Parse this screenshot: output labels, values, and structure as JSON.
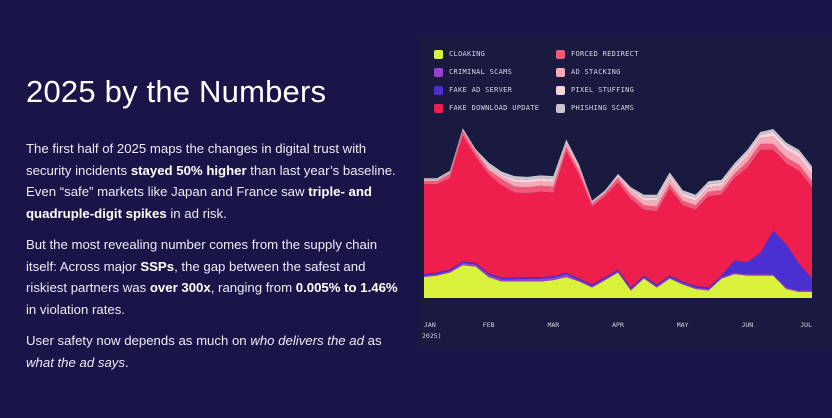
{
  "hero": {
    "title": "2025 by the Numbers",
    "p1": {
      "a": "The first half of 2025 maps the changes in digital trust with security incidents ",
      "b": "stayed 50% higher",
      "c": " than last year’s baseline. Even “safe” markets like Japan and France saw ",
      "d": "triple- and quadruple-digit spikes",
      "e": " in ad risk."
    },
    "p2": {
      "a": "But the most revealing number comes from the supply chain itself: Across major ",
      "b": "SSPs",
      "c": ", the gap between the safest and riskiest partners was ",
      "d": "over 300x",
      "e": ", ranging from ",
      "f": "0.005% to 1.46%",
      "g": " in violation rates."
    },
    "p3": {
      "a": "User safety now depends as much on ",
      "b": "who delivers the ad",
      "c": " as ",
      "d": "what the ad says",
      "e": "."
    }
  },
  "legend": [
    {
      "label": "CLOAKING",
      "color": "#d9f23b"
    },
    {
      "label": "FORCED REDIRECT",
      "color": "#f0597a"
    },
    {
      "label": "CRIMINAL SCAMS",
      "color": "#9b3fd6"
    },
    {
      "label": "AD STACKING",
      "color": "#f7a9b8"
    },
    {
      "label": "FAKE AD SERVER",
      "color": "#4a2fd1"
    },
    {
      "label": "PIXEL STUFFING",
      "color": "#fbd3dc"
    },
    {
      "label": "FAKE DOWNLOAD UPDATE",
      "color": "#ee1f4d"
    },
    {
      "label": "PHISHING SCAMS",
      "color": "#c8c5cf"
    }
  ],
  "chart_data": {
    "type": "area",
    "stacked": true,
    "categories": [
      "JAN",
      "FEB",
      "MAR",
      "APR",
      "MAY",
      "JUN",
      "JUL"
    ],
    "x_footnote": "2025)",
    "x": [
      0,
      1,
      2,
      3,
      4,
      5,
      6,
      7,
      8,
      9,
      10,
      11,
      12,
      13,
      14,
      15,
      16,
      17,
      18,
      19,
      20,
      21,
      22,
      23,
      24,
      25,
      26,
      27,
      28,
      29,
      30
    ],
    "series": [
      {
        "name": "CLOAKING",
        "color": "#d9f23b",
        "values": [
          14,
          15,
          17,
          22,
          21,
          14,
          11,
          11,
          11,
          11,
          12,
          14,
          11,
          7,
          12,
          17,
          5,
          13,
          7,
          13,
          9,
          6,
          5,
          13,
          16,
          15,
          15,
          15,
          6,
          4,
          4
        ]
      },
      {
        "name": "CRIMINAL SCAMS",
        "color": "#9b3fd6",
        "values": [
          1,
          1,
          1,
          1.5,
          1.5,
          1.5,
          1.5,
          1.5,
          2,
          2,
          1.5,
          2,
          1,
          1,
          1,
          1,
          1,
          1,
          1,
          1,
          1,
          1,
          1,
          1,
          1,
          1,
          1,
          1,
          1,
          1,
          1
        ]
      },
      {
        "name": "FAKE AD SERVER",
        "color": "#4a2fd1",
        "values": [
          1,
          1,
          1,
          1,
          1,
          1,
          1,
          1,
          1,
          1,
          1,
          1,
          1,
          1,
          1,
          1,
          1,
          1,
          1,
          1,
          1,
          1,
          1,
          1,
          8,
          8,
          14,
          29,
          29,
          18,
          8
        ]
      },
      {
        "name": "FAKE DOWNLOAD UPDATE",
        "color": "#ee1f4d",
        "values": [
          60,
          59,
          61,
          84,
          71,
          66,
          62,
          57,
          56,
          57,
          56,
          81,
          69,
          52,
          54,
          58,
          59,
          44,
          49,
          58,
          51,
          51,
          61,
          54,
          55,
          63,
          69,
          54,
          54,
          62,
          61
        ]
      },
      {
        "name": "FORCED REDIRECT",
        "color": "#f0597a",
        "values": [
          2,
          2,
          3,
          3,
          3,
          3,
          4,
          4,
          4,
          4,
          4,
          3,
          3,
          2,
          2,
          3,
          3,
          3,
          3,
          3,
          3,
          3,
          3,
          3,
          3,
          4,
          4,
          4,
          4,
          4,
          4
        ]
      },
      {
        "name": "AD STACKING",
        "color": "#f7a9b8",
        "values": [
          1,
          1,
          1,
          1,
          1,
          2,
          2,
          3,
          3,
          3,
          3,
          2,
          2,
          1,
          1,
          1,
          3,
          3,
          4,
          4,
          3,
          3,
          3,
          3,
          3,
          4,
          4,
          5,
          5,
          5,
          5
        ]
      },
      {
        "name": "PIXEL STUFFING",
        "color": "#fbd3dc",
        "values": [
          0,
          0,
          0,
          0,
          0,
          1,
          1,
          2,
          2,
          2,
          2,
          1,
          1,
          0,
          0,
          1,
          1,
          2,
          2,
          2,
          2,
          2,
          2,
          2,
          2,
          2,
          2,
          3,
          3,
          3,
          3
        ]
      },
      {
        "name": "PHISHING SCAMS",
        "color": "#c8c5cf",
        "values": [
          1,
          1,
          1,
          1,
          1,
          2,
          2,
          2,
          2,
          2,
          2,
          2,
          1,
          1,
          1,
          1,
          1,
          2,
          2,
          2,
          2,
          2,
          2,
          2,
          2,
          2,
          2,
          2,
          2,
          2,
          2
        ]
      }
    ],
    "ylim": [
      0,
      115
    ],
    "grid": false,
    "legend_position": "top"
  }
}
